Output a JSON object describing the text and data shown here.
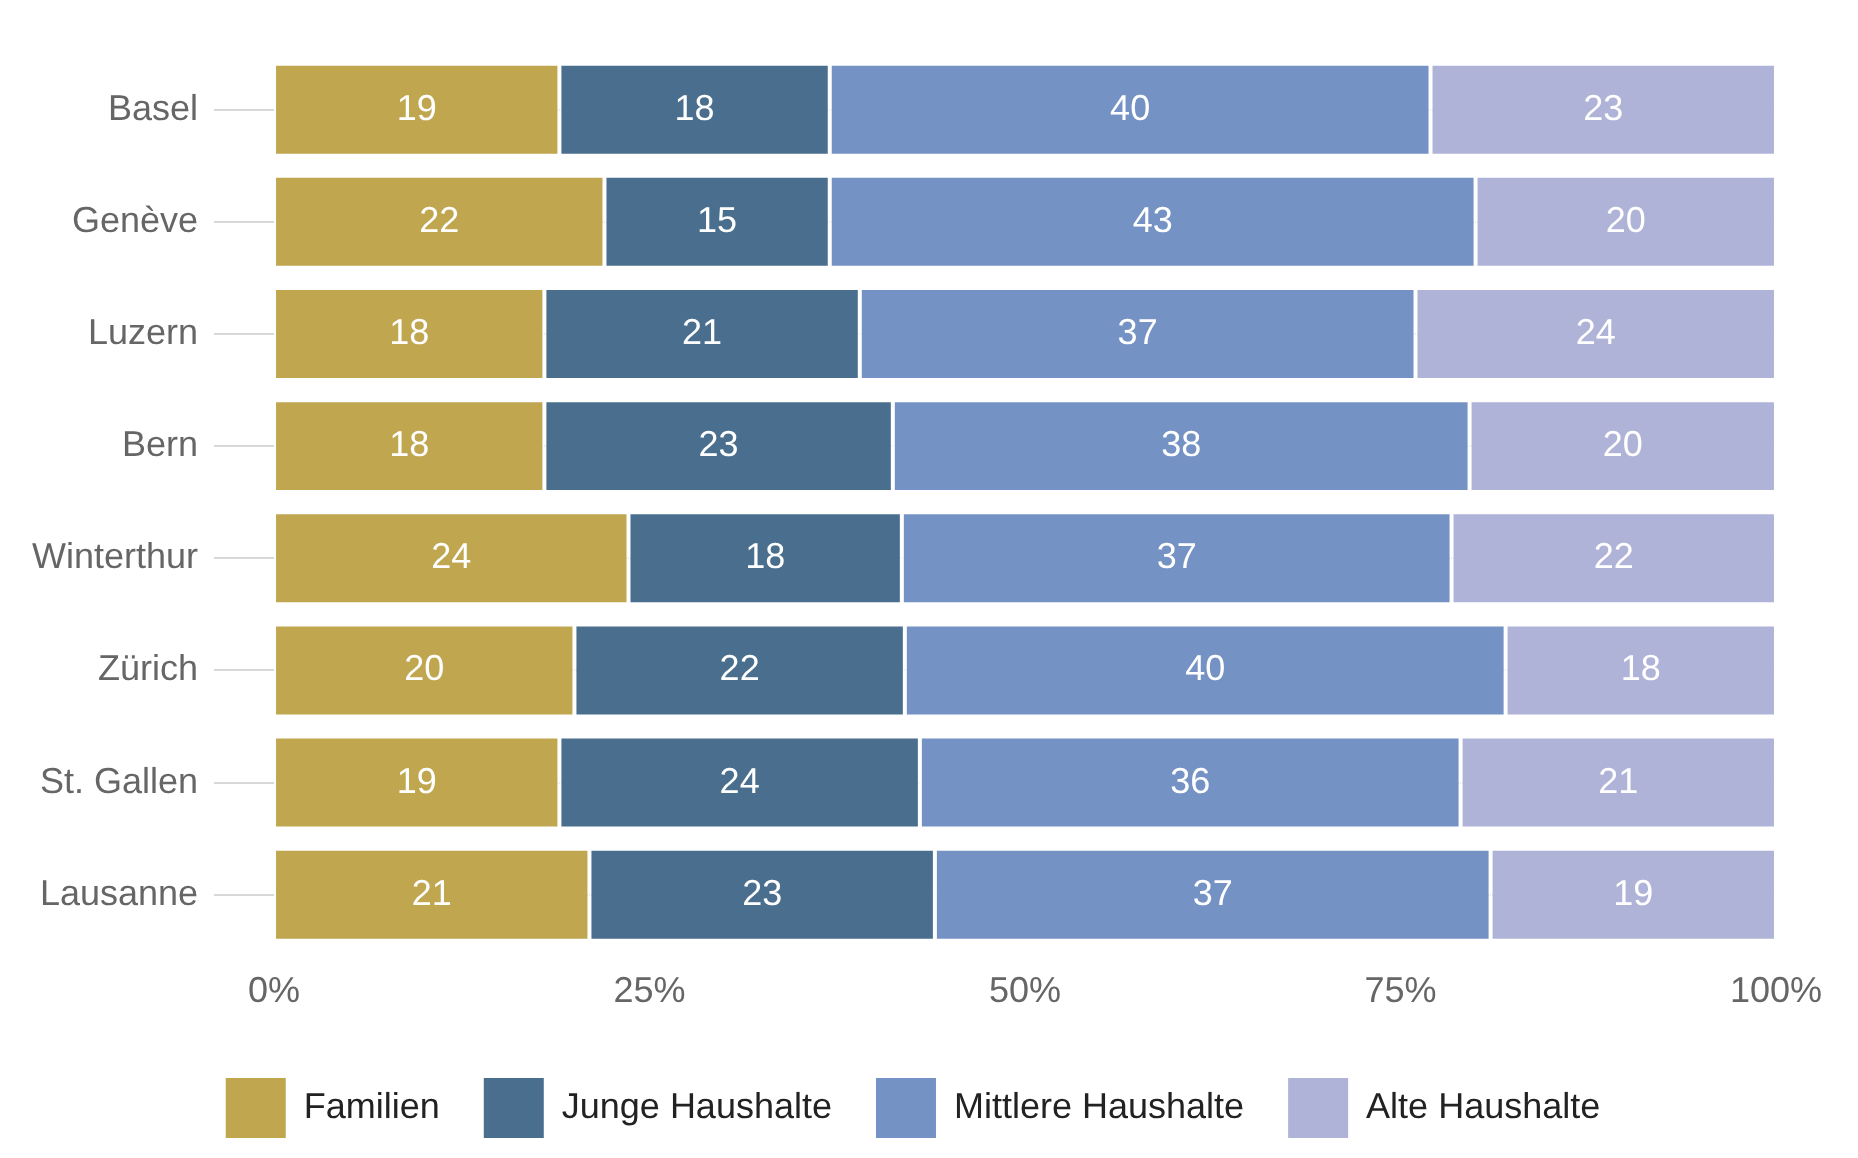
{
  "chart_data": {
    "type": "bar",
    "orientation": "horizontal",
    "stacked": true,
    "categories": [
      "Basel",
      "Genève",
      "Luzern",
      "Bern",
      "Winterthur",
      "Zürich",
      "St. Gallen",
      "Lausanne"
    ],
    "series": [
      {
        "name": "Familien",
        "color": "#bfa64f",
        "values": [
          19,
          22,
          18,
          18,
          23.6,
          20,
          19,
          21
        ],
        "value_labels": [
          "19",
          "22",
          "18",
          "18",
          "24",
          "20",
          "19",
          "21"
        ]
      },
      {
        "name": "Junge Haushalte",
        "color": "#4a6f8e",
        "values": [
          18,
          15,
          21,
          23.2,
          18.2,
          22,
          24,
          23
        ],
        "value_labels": [
          "18",
          "15",
          "21",
          "23",
          "18",
          "22",
          "24",
          "23"
        ]
      },
      {
        "name": "Mittlere Haushalte",
        "color": "#7592c4",
        "values": [
          40,
          43,
          37,
          38.4,
          36.6,
          40,
          36,
          37
        ],
        "value_labels": [
          "40",
          "43",
          "37",
          "38",
          "37",
          "40",
          "36",
          "37"
        ]
      },
      {
        "name": "Alte Haushalte",
        "color": "#b0b3d8",
        "values": [
          23,
          20,
          24,
          20.4,
          21.6,
          18,
          21,
          19
        ],
        "value_labels": [
          "23",
          "20",
          "24",
          "20",
          "22",
          "18",
          "21",
          "19"
        ]
      }
    ],
    "xlim": [
      0,
      100
    ],
    "xticks": [
      {
        "value": 0,
        "label": "0%"
      },
      {
        "value": 25,
        "label": "25%"
      },
      {
        "value": 50,
        "label": "50%"
      },
      {
        "value": 75,
        "label": "75%"
      },
      {
        "value": 100,
        "label": "100%"
      }
    ],
    "grid": "y",
    "legend": "bottom"
  }
}
